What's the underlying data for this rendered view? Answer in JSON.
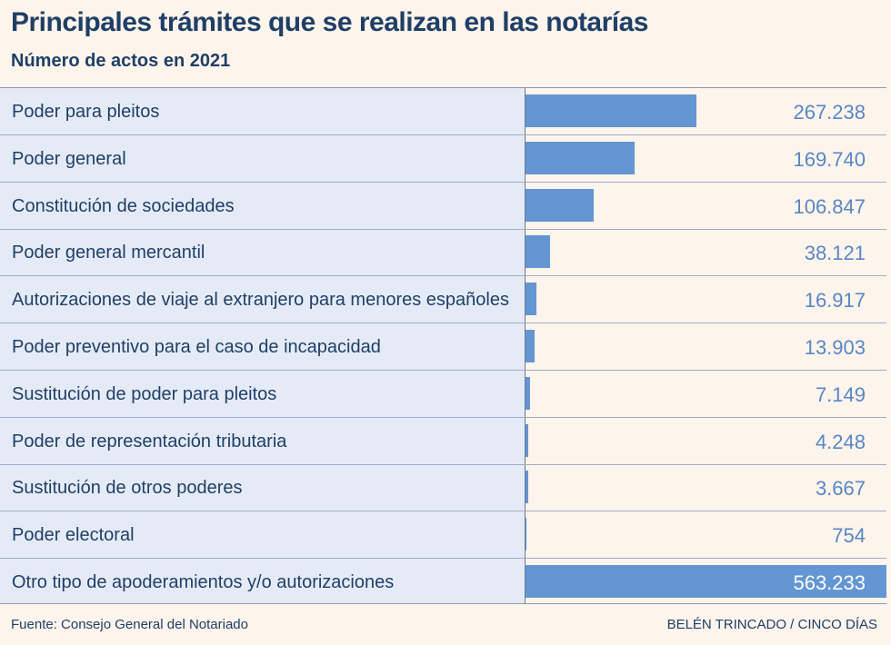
{
  "title": "Principales trámites que se realizan en las notarías",
  "subtitle": "Número de actos en 2021",
  "footer": {
    "source": "Fuente: Consejo General del Notariado",
    "credit": "BELÉN TRINCADO / CINCO DÍAS"
  },
  "colors": {
    "bar": "#6396d2",
    "title": "#1f3f66",
    "value": "#5887c4",
    "background": "#fdf4ec",
    "label_background": "#e5ebf6"
  },
  "chart_data": {
    "type": "bar",
    "orientation": "horizontal",
    "title": "Principales trámites que se realizan en las notarías",
    "subtitle": "Número de actos en 2021",
    "categories": [
      "Poder para pleitos",
      "Poder general",
      "Constitución de sociedades",
      "Poder general mercantil",
      "Autorizaciones de viaje al extranjero para menores españoles",
      "Poder preventivo para el caso de incapacidad",
      "Sustitución de poder para pleitos",
      "Poder de representación tributaria",
      "Sustitución de otros poderes",
      "Poder electoral",
      "Otro tipo de apoderamientos y/o autorizaciones"
    ],
    "values": [
      267238,
      169740,
      106847,
      38121,
      16917,
      13903,
      7149,
      4248,
      3667,
      754,
      563233
    ],
    "value_labels": [
      "267.238",
      "169.740",
      "106.847",
      "38.121",
      "16.917",
      "13.903",
      "7.149",
      "4.248",
      "3.667",
      "754",
      "563.233"
    ],
    "xlim": [
      0,
      563233
    ],
    "grid": false,
    "legend": "none"
  }
}
